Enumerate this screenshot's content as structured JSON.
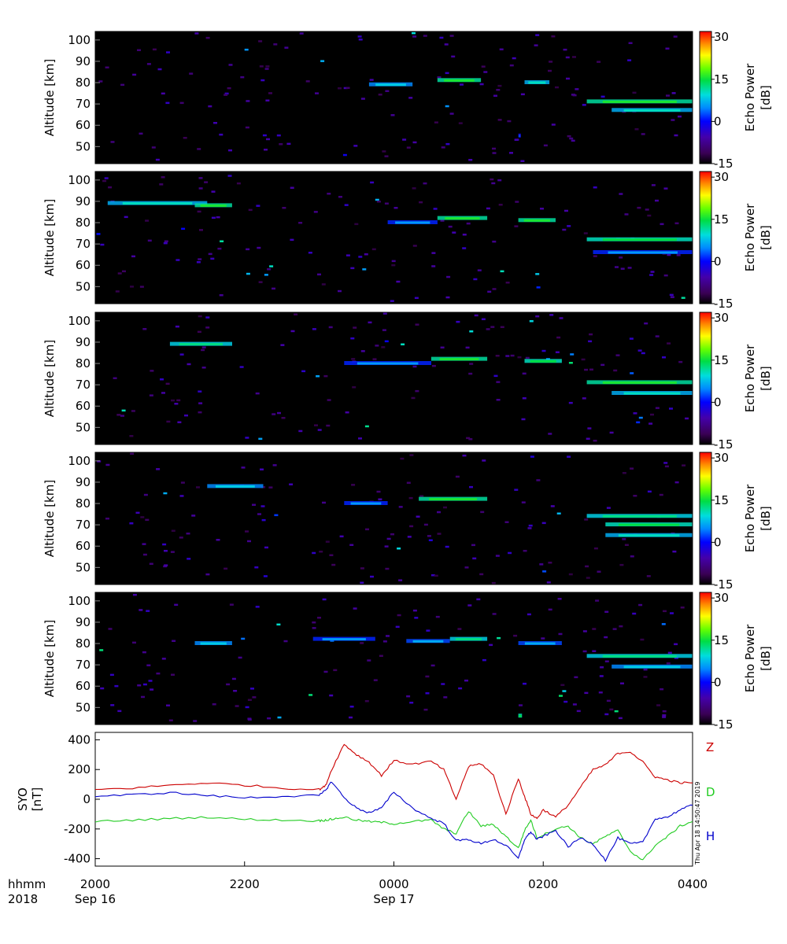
{
  "chart_data": [
    {
      "type": "heatmap",
      "panel": 1,
      "ylabel": "Altitude [km]",
      "yticks": [
        "100",
        "90",
        "80",
        "70",
        "60",
        "50"
      ],
      "ylim": [
        42,
        104
      ],
      "colorbar": {
        "label": "Echo Power",
        "unit": "[dB]",
        "ticks": [
          "30",
          "15",
          "0",
          "-15"
        ],
        "range": [
          -15,
          32
        ]
      },
      "features": [
        {
          "x_start": "23:40",
          "x_end": "00:15",
          "altitude_km": 79,
          "level_db": 8
        },
        {
          "x_start": "00:35",
          "x_end": "01:10",
          "altitude_km": 81,
          "level_db": 15
        },
        {
          "x_start": "01:45",
          "x_end": "02:05",
          "altitude_km": 80,
          "level_db": 10
        },
        {
          "x_start": "02:35",
          "x_end": "04:00",
          "altitude_km": 71,
          "level_db": 15
        },
        {
          "x_start": "02:55",
          "x_end": "04:00",
          "altitude_km": 67,
          "level_db": 10
        },
        {
          "x_start": "01:40",
          "x_end": "01:42",
          "altitude_km": 55,
          "level_db": 2
        }
      ]
    },
    {
      "type": "heatmap",
      "panel": 2,
      "ylabel": "Altitude [km]",
      "yticks": [
        "100",
        "90",
        "80",
        "70",
        "60",
        "50"
      ],
      "ylim": [
        42,
        104
      ],
      "colorbar": {
        "label": "Echo Power",
        "unit": "[dB]",
        "ticks": [
          "30",
          "15",
          "0",
          "-15"
        ],
        "range": [
          -15,
          32
        ]
      },
      "features": [
        {
          "x_start": "20:10",
          "x_end": "21:30",
          "altitude_km": 89,
          "level_db": 10
        },
        {
          "x_start": "21:20",
          "x_end": "21:50",
          "altitude_km": 88,
          "level_db": 15
        },
        {
          "x_start": "23:55",
          "x_end": "00:35",
          "altitude_km": 80,
          "level_db": 5
        },
        {
          "x_start": "00:35",
          "x_end": "01:15",
          "altitude_km": 82,
          "level_db": 15
        },
        {
          "x_start": "01:40",
          "x_end": "02:10",
          "altitude_km": 81,
          "level_db": 15
        },
        {
          "x_start": "02:35",
          "x_end": "04:00",
          "altitude_km": 72,
          "level_db": 14
        },
        {
          "x_start": "02:40",
          "x_end": "04:00",
          "altitude_km": 66,
          "level_db": 5
        }
      ]
    },
    {
      "type": "heatmap",
      "panel": 3,
      "ylabel": "Altitude [km]",
      "yticks": [
        "100",
        "90",
        "80",
        "70",
        "60",
        "50"
      ],
      "ylim": [
        42,
        104
      ],
      "colorbar": {
        "label": "Echo Power",
        "unit": "[dB]",
        "ticks": [
          "30",
          "15",
          "0",
          "-15"
        ],
        "range": [
          -15,
          32
        ]
      },
      "features": [
        {
          "x_start": "21:00",
          "x_end": "21:50",
          "altitude_km": 89,
          "level_db": 12
        },
        {
          "x_start": "23:20",
          "x_end": "00:30",
          "altitude_km": 80,
          "level_db": 5
        },
        {
          "x_start": "00:30",
          "x_end": "01:15",
          "altitude_km": 82,
          "level_db": 15
        },
        {
          "x_start": "01:45",
          "x_end": "02:15",
          "altitude_km": 81,
          "level_db": 14
        },
        {
          "x_start": "02:35",
          "x_end": "04:00",
          "altitude_km": 71,
          "level_db": 15
        },
        {
          "x_start": "02:55",
          "x_end": "04:00",
          "altitude_km": 66,
          "level_db": 10
        }
      ]
    },
    {
      "type": "heatmap",
      "panel": 4,
      "ylabel": "Altitude [km]",
      "yticks": [
        "100",
        "90",
        "80",
        "70",
        "60",
        "50"
      ],
      "ylim": [
        42,
        104
      ],
      "colorbar": {
        "label": "Echo Power",
        "unit": "[dB]",
        "ticks": [
          "30",
          "15",
          "0",
          "-15"
        ],
        "range": [
          -15,
          32
        ]
      },
      "features": [
        {
          "x_start": "21:30",
          "x_end": "22:15",
          "altitude_km": 88,
          "level_db": 8
        },
        {
          "x_start": "23:20",
          "x_end": "23:55",
          "altitude_km": 80,
          "level_db": 5
        },
        {
          "x_start": "00:20",
          "x_end": "01:15",
          "altitude_km": 82,
          "level_db": 15
        },
        {
          "x_start": "02:35",
          "x_end": "04:00",
          "altitude_km": 74,
          "level_db": 12
        },
        {
          "x_start": "02:50",
          "x_end": "04:00",
          "altitude_km": 70,
          "level_db": 14
        },
        {
          "x_start": "02:50",
          "x_end": "04:00",
          "altitude_km": 65,
          "level_db": 10
        }
      ]
    },
    {
      "type": "heatmap",
      "panel": 5,
      "ylabel": "Altitude [km]",
      "yticks": [
        "100",
        "90",
        "80",
        "70",
        "60",
        "50"
      ],
      "ylim": [
        42,
        104
      ],
      "colorbar": {
        "label": "Echo Power",
        "unit": "[dB]",
        "ticks": [
          "30",
          "15",
          "0",
          "-15"
        ],
        "range": [
          -15,
          32
        ]
      },
      "features": [
        {
          "x_start": "21:20",
          "x_end": "21:50",
          "altitude_km": 80,
          "level_db": 8
        },
        {
          "x_start": "22:55",
          "x_end": "23:45",
          "altitude_km": 82,
          "level_db": 5
        },
        {
          "x_start": "00:10",
          "x_end": "00:45",
          "altitude_km": 81,
          "level_db": 6
        },
        {
          "x_start": "00:45",
          "x_end": "01:15",
          "altitude_km": 82,
          "level_db": 12
        },
        {
          "x_start": "01:40",
          "x_end": "02:15",
          "altitude_km": 80,
          "level_db": 6
        },
        {
          "x_start": "02:35",
          "x_end": "04:00",
          "altitude_km": 74,
          "level_db": 12
        },
        {
          "x_start": "02:55",
          "x_end": "04:00",
          "altitude_km": 69,
          "level_db": 8
        },
        {
          "x_start": "01:40",
          "x_end": "01:43",
          "altitude_km": 46,
          "level_db": 14
        }
      ]
    },
    {
      "type": "line",
      "ylabel": "SYO",
      "yunit": "[nT]",
      "ylim": [
        -450,
        450
      ],
      "yticks": [
        "400",
        "200",
        "0",
        "-200",
        "-400"
      ],
      "x_label": "hhmm",
      "x_year": "2018",
      "x_ticks": [
        "2000",
        "2200",
        "0000",
        "0200",
        "0400"
      ],
      "date_labels": [
        "Sep 16",
        "Sep 17"
      ],
      "timestamp": "Thu Apr 18 14:50:47 2019",
      "x": [
        "20:00",
        "20:30",
        "21:00",
        "21:30",
        "22:00",
        "22:30",
        "23:00",
        "23:05",
        "23:10",
        "23:20",
        "23:30",
        "23:40",
        "23:50",
        "00:00",
        "00:15",
        "00:30",
        "00:40",
        "00:50",
        "01:00",
        "01:10",
        "01:20",
        "01:30",
        "01:40",
        "01:45",
        "01:50",
        "01:55",
        "02:00",
        "02:10",
        "02:20",
        "02:30",
        "02:40",
        "02:50",
        "03:00",
        "03:10",
        "03:20",
        "03:30",
        "03:40",
        "03:50",
        "04:00"
      ],
      "series": [
        {
          "name": "Z",
          "color": "#cc0000",
          "values": [
            65,
            75,
            95,
            110,
            95,
            75,
            65,
            90,
            200,
            370,
            300,
            250,
            160,
            260,
            235,
            255,
            200,
            0,
            220,
            240,
            160,
            -100,
            140,
            20,
            -100,
            -130,
            -70,
            -120,
            -40,
            80,
            200,
            230,
            310,
            320,
            250,
            150,
            130,
            110,
            110
          ]
        },
        {
          "name": "D",
          "color": "#22cc22",
          "values": [
            -150,
            -140,
            -130,
            -120,
            -135,
            -140,
            -145,
            -140,
            -135,
            -120,
            -140,
            -150,
            -155,
            -165,
            -150,
            -140,
            -200,
            -230,
            -80,
            -180,
            -170,
            -250,
            -330,
            -210,
            -140,
            -260,
            -240,
            -200,
            -180,
            -260,
            -300,
            -250,
            -210,
            -350,
            -410,
            -310,
            -250,
            -180,
            -150
          ]
        },
        {
          "name": "H",
          "color": "#0000cc",
          "values": [
            20,
            30,
            45,
            25,
            10,
            20,
            25,
            60,
            120,
            10,
            -60,
            -90,
            -60,
            50,
            -60,
            -130,
            -160,
            -280,
            -270,
            -300,
            -270,
            -310,
            -400,
            -270,
            -220,
            -270,
            -250,
            -210,
            -320,
            -260,
            -300,
            -410,
            -260,
            -300,
            -290,
            -130,
            -120,
            -70,
            -40
          ]
        }
      ]
    }
  ]
}
